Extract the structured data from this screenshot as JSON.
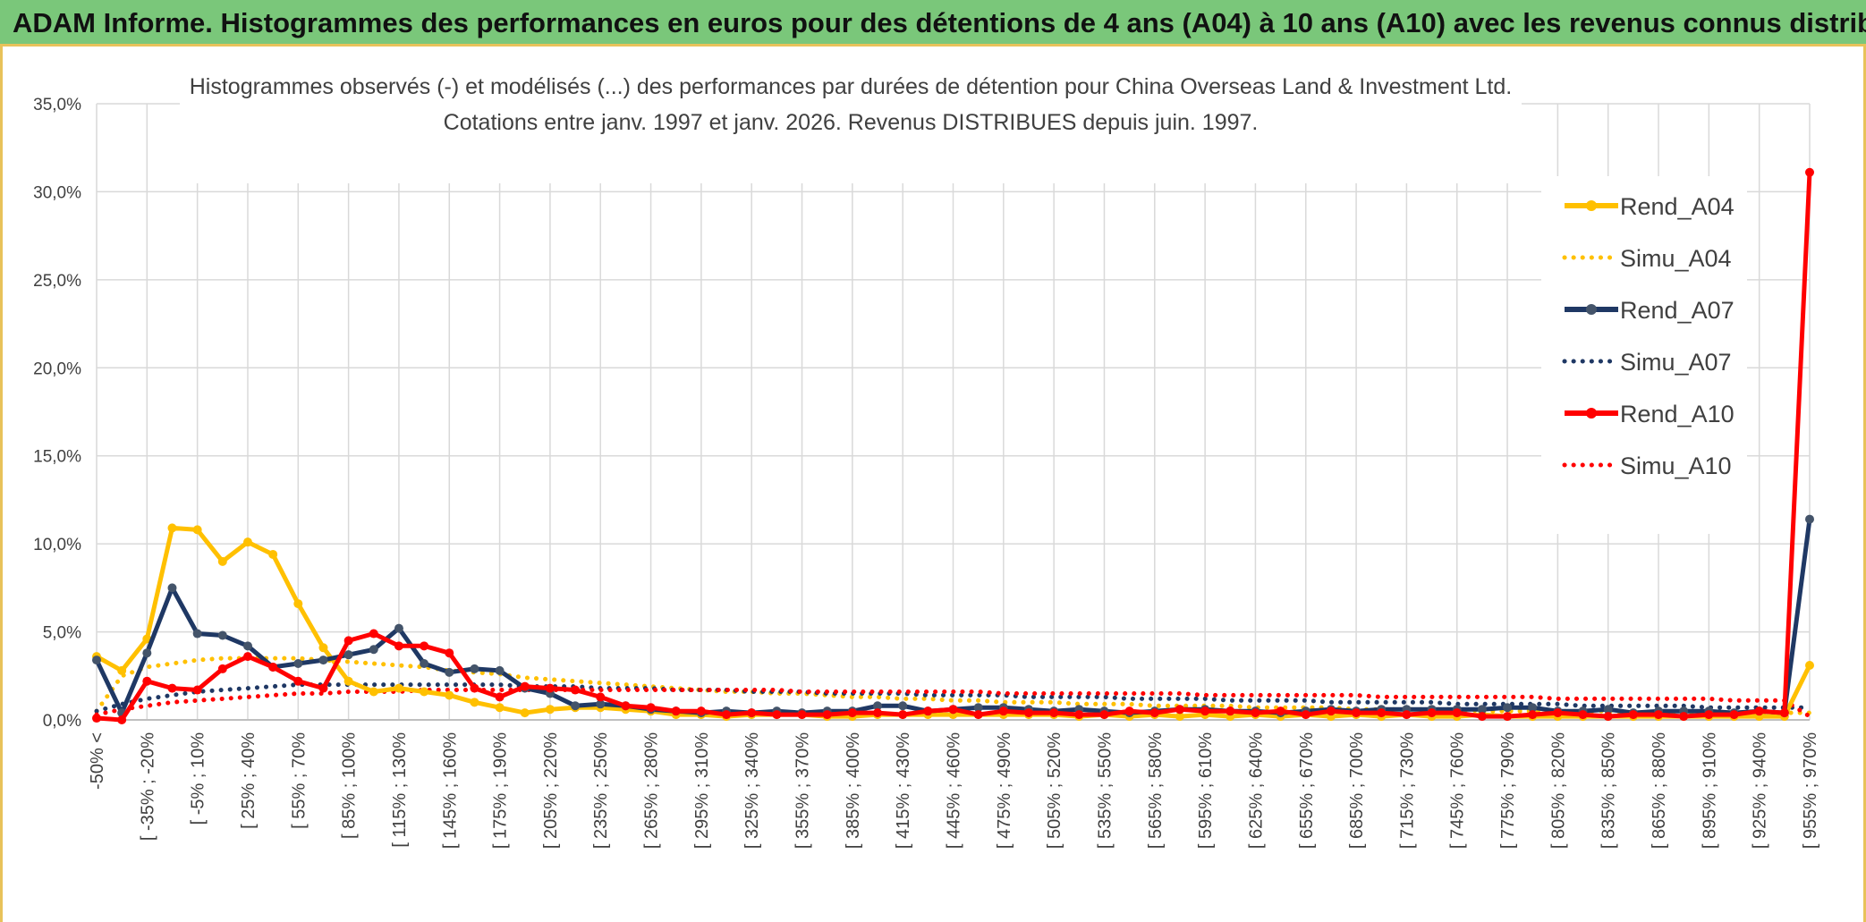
{
  "header": {
    "title": "ADAM Informe. Histogrammes des performances en euros pour des détentions de 4 ans (A04) à 10 ans (A10) avec les revenus connus distribués"
  },
  "chart_data": {
    "type": "line",
    "title_line1": "Histogrammes observés (-) et modélisés (...) des performances par durées de détention pour China Overseas Land & Investment Ltd.",
    "title_line2": "Cotations entre janv. 1997 et janv. 2026. Revenus DISTRIBUES depuis juin. 1997.",
    "ylim": [
      0,
      35
    ],
    "y_ticks": [
      "0,0%",
      "5,0%",
      "10,0%",
      "15,0%",
      "20,0%",
      "25,0%",
      "30,0%",
      "35,0%"
    ],
    "x_tick_labels": [
      "-50% <",
      "[ -35% ; -20%",
      "[ -5% ; 10%",
      "[ 25% ; 40%",
      "[ 55% ; 70%",
      "[ 85% ; 100%",
      "[ 115% ; 130%",
      "[ 145% ; 160%",
      "[ 175% ; 190%",
      "[ 205% ; 220%",
      "[ 235% ; 250%",
      "[ 265% ; 280%",
      "[ 295% ; 310%",
      "[ 325% ; 340%",
      "[ 355% ; 370%",
      "[ 385% ; 400%",
      "[ 415% ; 430%",
      "[ 445% ; 460%",
      "[ 475% ; 490%",
      "[ 505% ; 520%",
      "[ 535% ; 550%",
      "[ 565% ; 580%",
      "[ 595% ; 610%",
      "[ 625% ; 640%",
      "[ 655% ; 670%",
      "[ 685% ; 700%",
      "[ 715% ; 730%",
      "[ 745% ; 760%",
      "[ 775% ; 790%",
      "[ 805% ; 820%",
      "[ 835% ; 850%",
      "[ 865% ; 880%",
      "[ 895% ; 910%",
      "[ 925% ; 940%",
      "[ 955% ; 970%"
    ],
    "n_points": 69,
    "series": [
      {
        "name": "Rend_A04",
        "style": "solid",
        "color": "#ffc000",
        "values": [
          3.6,
          2.8,
          4.6,
          10.9,
          10.8,
          9.0,
          10.1,
          9.4,
          6.6,
          4.1,
          2.2,
          1.6,
          1.8,
          1.6,
          1.4,
          1.0,
          0.7,
          0.4,
          0.6,
          0.7,
          0.7,
          0.6,
          0.5,
          0.3,
          0.3,
          0.2,
          0.3,
          0.3,
          0.3,
          0.2,
          0.2,
          0.3,
          0.3,
          0.3,
          0.3,
          0.3,
          0.3,
          0.3,
          0.3,
          0.2,
          0.3,
          0.2,
          0.3,
          0.2,
          0.3,
          0.2,
          0.3,
          0.2,
          0.3,
          0.2,
          0.3,
          0.2,
          0.3,
          0.2,
          0.2,
          0.3,
          0.2,
          0.2,
          0.2,
          0.2,
          0.2,
          0.2,
          0.2,
          0.2,
          0.2,
          0.2,
          0.2,
          0.2,
          3.1
        ]
      },
      {
        "name": "Simu_A04",
        "style": "dotted",
        "color": "#ffc000",
        "values": [
          0.5,
          2.5,
          3.0,
          3.2,
          3.4,
          3.5,
          3.5,
          3.5,
          3.5,
          3.4,
          3.3,
          3.2,
          3.1,
          3.0,
          2.8,
          2.7,
          2.6,
          2.4,
          2.3,
          2.2,
          2.1,
          2.0,
          1.9,
          1.8,
          1.7,
          1.6,
          1.6,
          1.5,
          1.5,
          1.4,
          1.3,
          1.3,
          1.2,
          1.2,
          1.1,
          1.1,
          1.0,
          1.0,
          1.0,
          0.9,
          0.9,
          0.9,
          0.8,
          0.8,
          0.8,
          0.8,
          0.7,
          0.7,
          0.7,
          0.7,
          0.6,
          0.6,
          0.6,
          0.6,
          0.6,
          0.5,
          0.5,
          0.5,
          0.5,
          0.5,
          0.5,
          0.4,
          0.4,
          0.4,
          0.4,
          0.4,
          0.4,
          0.4,
          0.4
        ]
      },
      {
        "name": "Rend_A07",
        "style": "solid",
        "color": "#1f3864",
        "values": [
          3.4,
          0.4,
          3.8,
          7.5,
          4.9,
          4.8,
          4.2,
          3.0,
          3.2,
          3.4,
          3.7,
          4.0,
          5.2,
          3.2,
          2.7,
          2.9,
          2.8,
          1.8,
          1.5,
          0.8,
          0.9,
          0.8,
          0.6,
          0.5,
          0.4,
          0.5,
          0.4,
          0.5,
          0.4,
          0.5,
          0.5,
          0.8,
          0.8,
          0.5,
          0.6,
          0.7,
          0.7,
          0.6,
          0.5,
          0.6,
          0.5,
          0.4,
          0.5,
          0.6,
          0.6,
          0.5,
          0.5,
          0.4,
          0.5,
          0.6,
          0.5,
          0.6,
          0.6,
          0.6,
          0.6,
          0.6,
          0.7,
          0.7,
          0.5,
          0.5,
          0.6,
          0.4,
          0.5,
          0.5,
          0.5,
          0.4,
          0.5,
          0.4,
          11.4
        ]
      },
      {
        "name": "Simu_A07",
        "style": "dotted",
        "color": "#1f3864",
        "values": [
          0.5,
          0.9,
          1.2,
          1.4,
          1.6,
          1.7,
          1.8,
          1.9,
          2.0,
          2.0,
          2.0,
          2.0,
          2.0,
          2.0,
          2.0,
          2.0,
          2.0,
          1.9,
          1.9,
          1.9,
          1.8,
          1.8,
          1.8,
          1.7,
          1.7,
          1.7,
          1.6,
          1.6,
          1.6,
          1.5,
          1.5,
          1.5,
          1.5,
          1.4,
          1.4,
          1.4,
          1.4,
          1.3,
          1.3,
          1.3,
          1.3,
          1.2,
          1.2,
          1.2,
          1.2,
          1.1,
          1.1,
          1.1,
          1.1,
          1.0,
          1.0,
          1.0,
          1.0,
          1.0,
          0.9,
          0.9,
          0.9,
          0.9,
          0.9,
          0.8,
          0.8,
          0.8,
          0.8,
          0.8,
          0.7,
          0.7,
          0.7,
          0.7,
          0.7
        ]
      },
      {
        "name": "Rend_A10",
        "style": "solid",
        "color": "#ff0000",
        "values": [
          0.1,
          0.0,
          2.2,
          1.8,
          1.7,
          2.9,
          3.6,
          3.0,
          2.2,
          1.8,
          4.5,
          4.9,
          4.2,
          4.2,
          3.8,
          1.8,
          1.3,
          1.9,
          1.8,
          1.7,
          1.3,
          0.8,
          0.7,
          0.5,
          0.5,
          0.3,
          0.4,
          0.3,
          0.3,
          0.3,
          0.4,
          0.4,
          0.3,
          0.5,
          0.6,
          0.3,
          0.5,
          0.4,
          0.4,
          0.3,
          0.3,
          0.5,
          0.4,
          0.6,
          0.5,
          0.5,
          0.4,
          0.5,
          0.3,
          0.5,
          0.4,
          0.4,
          0.3,
          0.4,
          0.4,
          0.2,
          0.2,
          0.3,
          0.4,
          0.3,
          0.2,
          0.3,
          0.3,
          0.2,
          0.3,
          0.3,
          0.5,
          0.4,
          31.1
        ]
      },
      {
        "name": "Simu_A10",
        "style": "dotted",
        "color": "#ff0000",
        "values": [
          0.3,
          0.6,
          0.8,
          1.0,
          1.1,
          1.2,
          1.3,
          1.4,
          1.5,
          1.5,
          1.6,
          1.6,
          1.6,
          1.7,
          1.7,
          1.7,
          1.7,
          1.7,
          1.7,
          1.7,
          1.7,
          1.7,
          1.7,
          1.7,
          1.7,
          1.7,
          1.7,
          1.7,
          1.6,
          1.6,
          1.6,
          1.6,
          1.6,
          1.6,
          1.6,
          1.6,
          1.5,
          1.5,
          1.5,
          1.5,
          1.5,
          1.5,
          1.5,
          1.5,
          1.4,
          1.4,
          1.4,
          1.4,
          1.4,
          1.4,
          1.4,
          1.3,
          1.3,
          1.3,
          1.3,
          1.3,
          1.3,
          1.3,
          1.2,
          1.2,
          1.2,
          1.2,
          1.2,
          1.2,
          1.2,
          1.1,
          1.1,
          1.1,
          0.2
        ]
      }
    ]
  }
}
